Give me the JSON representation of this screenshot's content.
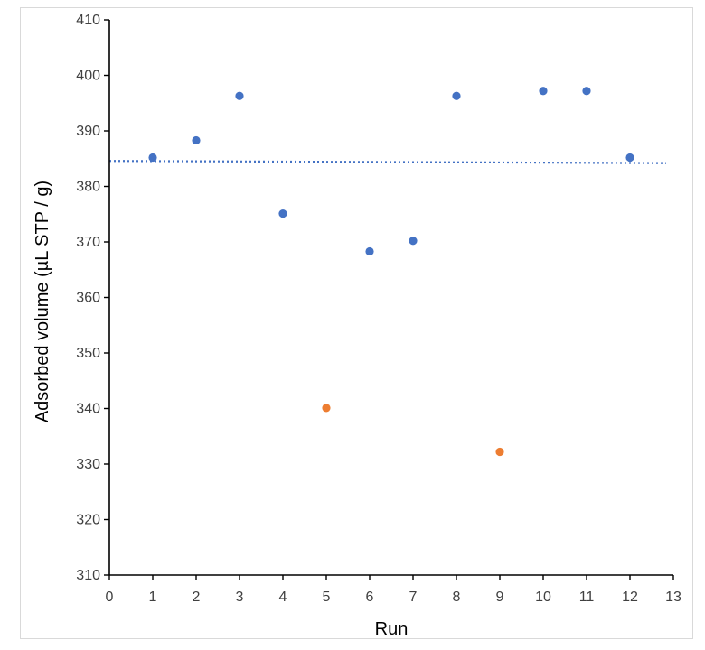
{
  "chart_data": {
    "type": "scatter",
    "title": "",
    "xlabel": "Run",
    "ylabel": "Adsorbed volume (µL  STP / g)",
    "xlim": [
      0,
      13
    ],
    "ylim": [
      310,
      410
    ],
    "xticks": [
      0,
      1,
      2,
      3,
      4,
      5,
      6,
      7,
      8,
      9,
      10,
      11,
      12,
      13
    ],
    "yticks": [
      310,
      320,
      330,
      340,
      350,
      360,
      370,
      380,
      390,
      400,
      410
    ],
    "grid": false,
    "legend": "none",
    "series": [
      {
        "color": "#4472c4",
        "points": [
          {
            "x": 1,
            "y": 385.2
          },
          {
            "x": 2,
            "y": 388.3
          },
          {
            "x": 3,
            "y": 396.3
          },
          {
            "x": 4,
            "y": 375.1
          },
          {
            "x": 6,
            "y": 368.3
          },
          {
            "x": 7,
            "y": 370.2
          },
          {
            "x": 8,
            "y": 396.3
          },
          {
            "x": 10,
            "y": 397.2
          },
          {
            "x": 11,
            "y": 397.2
          },
          {
            "x": 12,
            "y": 385.2
          }
        ]
      },
      {
        "color": "#ed7d31",
        "points": [
          {
            "x": 5,
            "y": 340.1
          },
          {
            "x": 9,
            "y": 332.2
          }
        ]
      }
    ],
    "reference_line": {
      "style": "dotted",
      "color": "#4472c4",
      "x": [
        0,
        13
      ],
      "y": [
        384.6,
        384.2
      ]
    }
  }
}
